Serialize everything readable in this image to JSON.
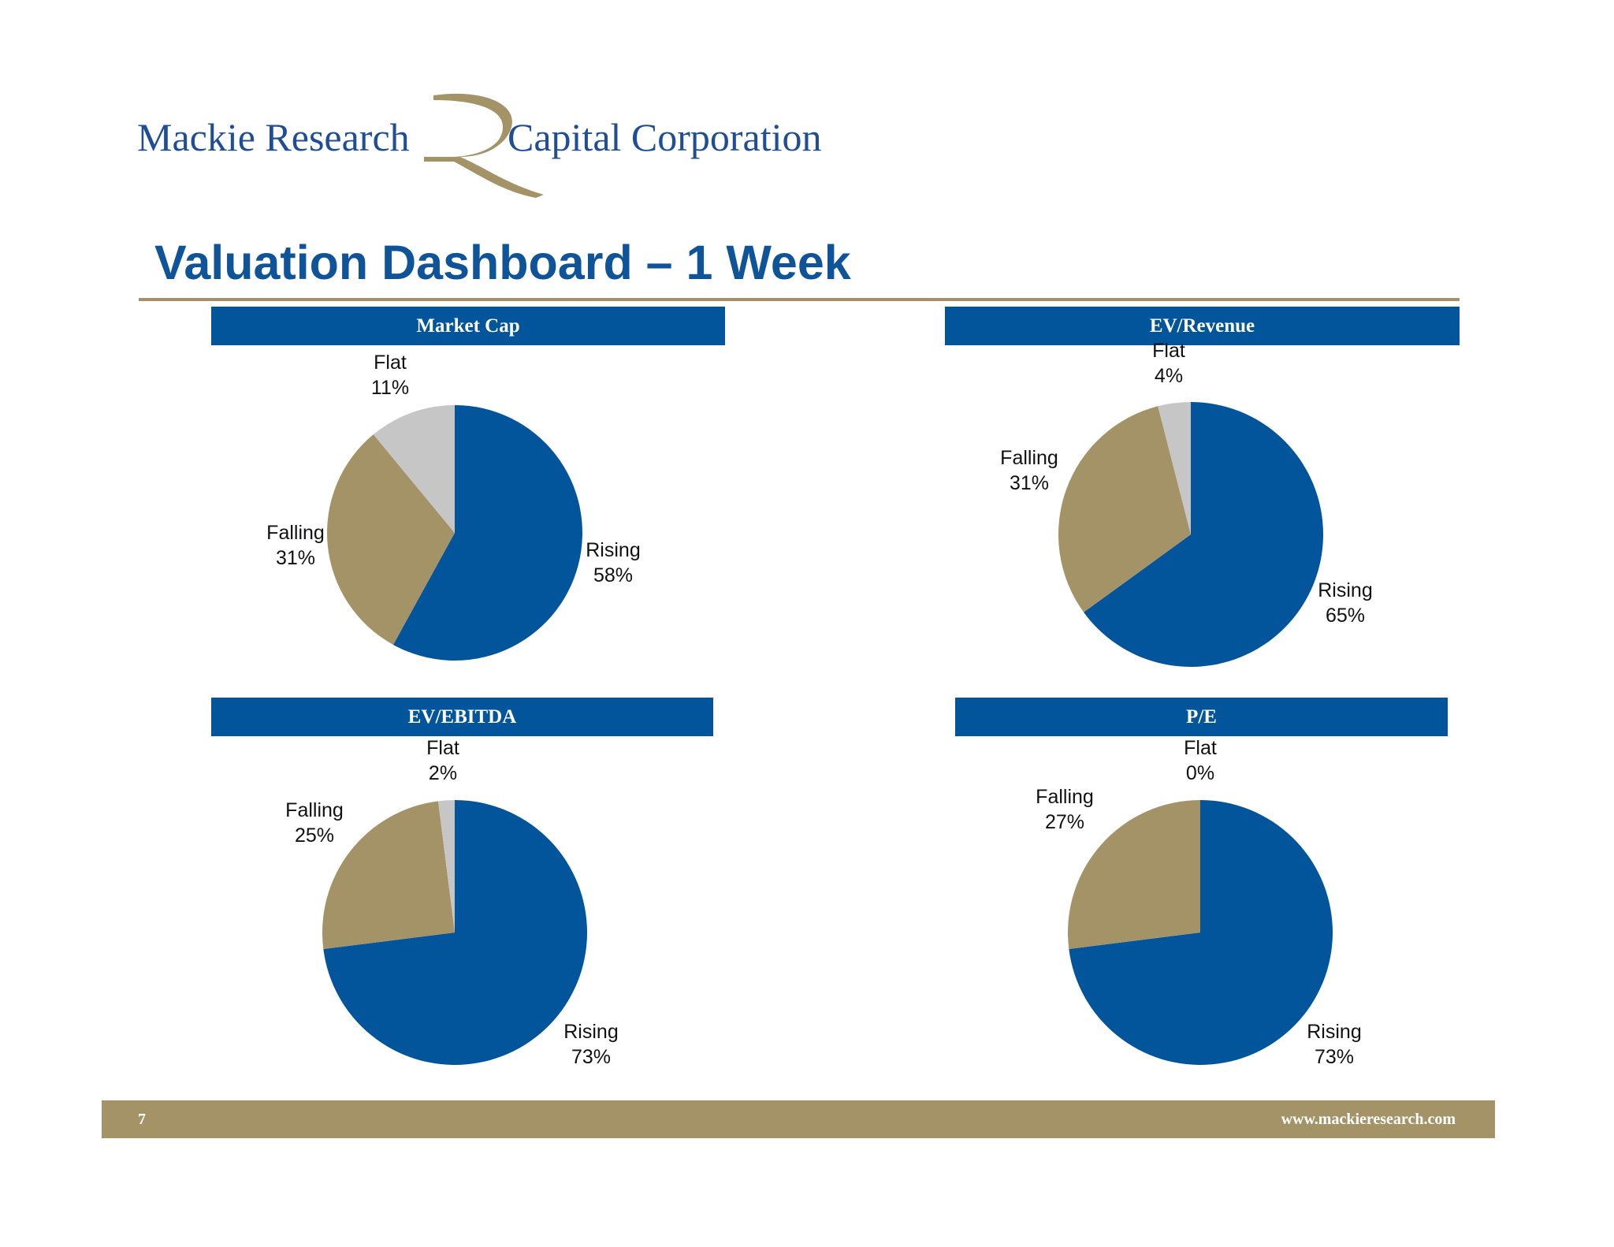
{
  "logo": {
    "text_left": "Mackie Research",
    "text_right": "Capital Corporation",
    "colors": {
      "text": "#1f4e96",
      "mark": "#a39367"
    }
  },
  "title": "Valuation Dashboard – 1 Week",
  "footer": {
    "page_number": "7",
    "website": "www.mackieresearch.com"
  },
  "colors": {
    "rising": "#02559b",
    "falling": "#a39367",
    "flat": "#c6c6c6",
    "header_bg": "#02559b",
    "rule": "#a39367"
  },
  "chart_data": [
    {
      "type": "pie",
      "title": "Market Cap",
      "slices": [
        {
          "label": "Rising",
          "pct_label": "58%",
          "value": 58,
          "color": "#02559b"
        },
        {
          "label": "Falling",
          "pct_label": "31%",
          "value": 31,
          "color": "#a39367"
        },
        {
          "label": "Flat",
          "pct_label": "11%",
          "value": 11,
          "color": "#c6c6c6"
        }
      ]
    },
    {
      "type": "pie",
      "title": "EV/Revenue",
      "slices": [
        {
          "label": "Rising",
          "pct_label": "65%",
          "value": 65,
          "color": "#02559b"
        },
        {
          "label": "Falling",
          "pct_label": "31%",
          "value": 31,
          "color": "#a39367"
        },
        {
          "label": "Flat",
          "pct_label": "4%",
          "value": 4,
          "color": "#c6c6c6"
        }
      ]
    },
    {
      "type": "pie",
      "title": "EV/EBITDA",
      "slices": [
        {
          "label": "Rising",
          "pct_label": "73%",
          "value": 73,
          "color": "#02559b"
        },
        {
          "label": "Falling",
          "pct_label": "25%",
          "value": 25,
          "color": "#a39367"
        },
        {
          "label": "Flat",
          "pct_label": "2%",
          "value": 2,
          "color": "#c6c6c6"
        }
      ]
    },
    {
      "type": "pie",
      "title": "P/E",
      "slices": [
        {
          "label": "Rising",
          "pct_label": "73%",
          "value": 73,
          "color": "#02559b"
        },
        {
          "label": "Falling",
          "pct_label": "27%",
          "value": 27,
          "color": "#a39367"
        },
        {
          "label": "Flat",
          "pct_label": "0%",
          "value": 0,
          "color": "#c6c6c6"
        }
      ]
    }
  ]
}
